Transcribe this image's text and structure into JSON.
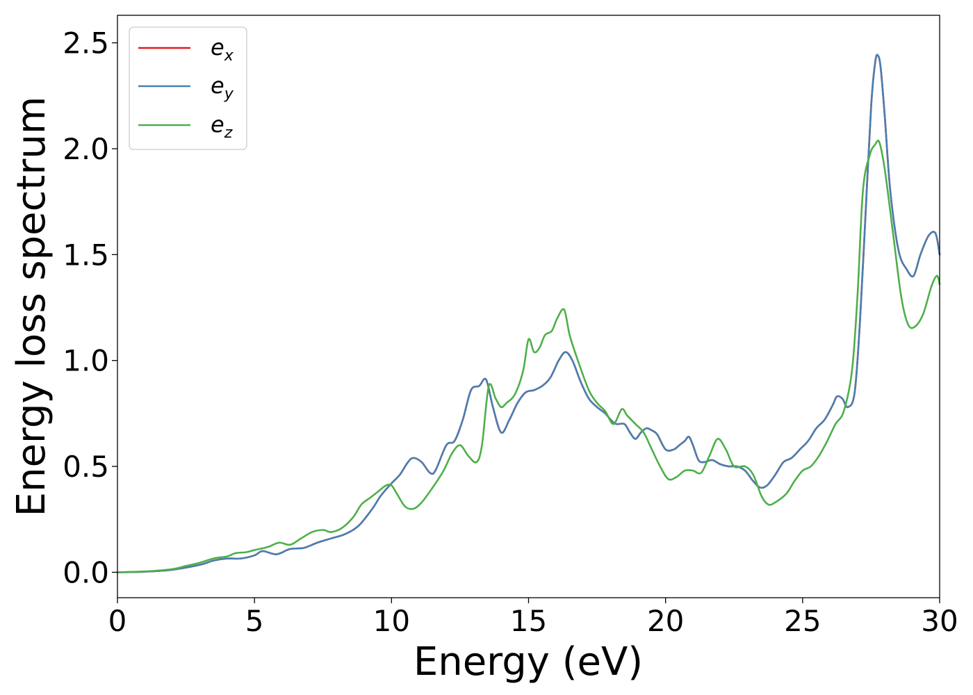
{
  "chart_data": {
    "type": "line",
    "xlabel": "Energy (eV)",
    "ylabel": "Energy loss spectrum",
    "xlim": [
      0,
      30
    ],
    "ylim": [
      -0.12,
      2.63
    ],
    "xticks": [
      0,
      5,
      10,
      15,
      20,
      25,
      30
    ],
    "xtick_labels": [
      "0",
      "5",
      "10",
      "15",
      "20",
      "25",
      "30"
    ],
    "yticks": [
      0.0,
      0.5,
      1.0,
      1.5,
      2.0,
      2.5
    ],
    "ytick_labels": [
      "0.0",
      "0.5",
      "1.0",
      "1.5",
      "2.0",
      "2.5"
    ],
    "grid": false,
    "legend_position": "top-left",
    "series": [
      {
        "name": "e_x",
        "legend_base": "e",
        "legend_sub": "x",
        "color": "#e41a1c",
        "x": [
          0,
          1,
          2,
          3,
          3.5,
          4,
          4.5,
          5,
          5.3,
          5.8,
          6.3,
          6.8,
          7.3,
          7.8,
          8.3,
          8.8,
          9.3,
          9.6,
          10,
          10.3,
          10.6,
          10.8,
          11.1,
          11.4,
          11.6,
          12,
          12.3,
          12.6,
          12.9,
          13.2,
          13.45,
          13.7,
          14,
          14.3,
          14.6,
          14.9,
          15.2,
          15.5,
          15.8,
          16.1,
          16.35,
          16.6,
          16.9,
          17.2,
          17.5,
          17.8,
          18,
          18.2,
          18.5,
          18.7,
          18.9,
          19.1,
          19.3,
          19.5,
          19.7,
          20,
          20.3,
          20.5,
          20.7,
          20.85,
          21,
          21.2,
          21.4,
          21.7,
          22,
          22.3,
          22.6,
          22.9,
          23.2,
          23.45,
          23.7,
          24,
          24.3,
          24.6,
          24.9,
          25.2,
          25.5,
          25.8,
          26.1,
          26.25,
          26.45,
          26.65,
          26.9,
          27.1,
          27.3,
          27.5,
          27.65,
          27.75,
          27.85,
          28,
          28.2,
          28.5,
          28.8,
          29.05,
          29.3,
          29.6,
          29.85,
          30
        ],
        "y": [
          0,
          0.003,
          0.012,
          0.035,
          0.055,
          0.065,
          0.065,
          0.08,
          0.1,
          0.085,
          0.11,
          0.115,
          0.14,
          0.16,
          0.18,
          0.22,
          0.3,
          0.36,
          0.42,
          0.46,
          0.52,
          0.54,
          0.52,
          0.47,
          0.48,
          0.6,
          0.62,
          0.72,
          0.86,
          0.88,
          0.91,
          0.78,
          0.66,
          0.72,
          0.8,
          0.85,
          0.86,
          0.88,
          0.92,
          1.0,
          1.04,
          1.0,
          0.9,
          0.82,
          0.78,
          0.75,
          0.72,
          0.7,
          0.7,
          0.66,
          0.63,
          0.66,
          0.68,
          0.67,
          0.65,
          0.58,
          0.58,
          0.6,
          0.62,
          0.64,
          0.6,
          0.53,
          0.52,
          0.53,
          0.51,
          0.5,
          0.5,
          0.48,
          0.43,
          0.4,
          0.41,
          0.46,
          0.52,
          0.54,
          0.58,
          0.62,
          0.68,
          0.72,
          0.79,
          0.83,
          0.82,
          0.78,
          0.85,
          1.2,
          1.7,
          2.2,
          2.41,
          2.44,
          2.38,
          2.15,
          1.8,
          1.52,
          1.43,
          1.4,
          1.5,
          1.59,
          1.6,
          1.5
        ]
      },
      {
        "name": "e_y",
        "legend_base": "e",
        "legend_sub": "y",
        "color": "#4a7fb0",
        "x": [
          0,
          1,
          2,
          3,
          3.5,
          4,
          4.5,
          5,
          5.3,
          5.8,
          6.3,
          6.8,
          7.3,
          7.8,
          8.3,
          8.8,
          9.3,
          9.6,
          10,
          10.3,
          10.6,
          10.8,
          11.1,
          11.4,
          11.6,
          12,
          12.3,
          12.6,
          12.9,
          13.2,
          13.45,
          13.7,
          14,
          14.3,
          14.6,
          14.9,
          15.2,
          15.5,
          15.8,
          16.1,
          16.35,
          16.6,
          16.9,
          17.2,
          17.5,
          17.8,
          18,
          18.2,
          18.5,
          18.7,
          18.9,
          19.1,
          19.3,
          19.5,
          19.7,
          20,
          20.3,
          20.5,
          20.7,
          20.85,
          21,
          21.2,
          21.4,
          21.7,
          22,
          22.3,
          22.6,
          22.9,
          23.2,
          23.45,
          23.7,
          24,
          24.3,
          24.6,
          24.9,
          25.2,
          25.5,
          25.8,
          26.1,
          26.25,
          26.45,
          26.65,
          26.9,
          27.1,
          27.3,
          27.5,
          27.65,
          27.75,
          27.85,
          28,
          28.2,
          28.5,
          28.8,
          29.05,
          29.3,
          29.6,
          29.85,
          30
        ],
        "y": [
          0,
          0.003,
          0.012,
          0.035,
          0.055,
          0.065,
          0.065,
          0.08,
          0.1,
          0.085,
          0.11,
          0.115,
          0.14,
          0.16,
          0.18,
          0.22,
          0.3,
          0.36,
          0.42,
          0.46,
          0.52,
          0.54,
          0.52,
          0.47,
          0.48,
          0.6,
          0.62,
          0.72,
          0.86,
          0.88,
          0.91,
          0.78,
          0.66,
          0.72,
          0.8,
          0.85,
          0.86,
          0.88,
          0.92,
          1.0,
          1.04,
          1.0,
          0.9,
          0.82,
          0.78,
          0.75,
          0.72,
          0.7,
          0.7,
          0.66,
          0.63,
          0.66,
          0.68,
          0.67,
          0.65,
          0.58,
          0.58,
          0.6,
          0.62,
          0.64,
          0.6,
          0.53,
          0.52,
          0.53,
          0.51,
          0.5,
          0.5,
          0.48,
          0.43,
          0.4,
          0.41,
          0.46,
          0.52,
          0.54,
          0.58,
          0.62,
          0.68,
          0.72,
          0.79,
          0.83,
          0.82,
          0.78,
          0.85,
          1.2,
          1.7,
          2.2,
          2.41,
          2.44,
          2.38,
          2.15,
          1.8,
          1.52,
          1.43,
          1.4,
          1.5,
          1.59,
          1.6,
          1.5
        ]
      },
      {
        "name": "e_z",
        "legend_base": "e",
        "legend_sub": "z",
        "color": "#4daf4a",
        "x": [
          0,
          1,
          2,
          2.5,
          3,
          3.5,
          4,
          4.3,
          4.7,
          5,
          5.5,
          5.9,
          6.3,
          6.7,
          7.1,
          7.5,
          7.8,
          8.2,
          8.6,
          8.9,
          9.2,
          9.5,
          9.8,
          10,
          10.2,
          10.5,
          10.8,
          11.1,
          11.5,
          11.9,
          12.2,
          12.5,
          12.8,
          13.1,
          13.3,
          13.55,
          13.8,
          14,
          14.2,
          14.5,
          14.8,
          15,
          15.2,
          15.4,
          15.6,
          15.85,
          16.05,
          16.3,
          16.5,
          16.8,
          17.2,
          17.5,
          17.8,
          18.1,
          18.4,
          18.6,
          18.9,
          19.2,
          19.5,
          19.8,
          20.1,
          20.4,
          20.7,
          21,
          21.3,
          21.6,
          21.9,
          22.2,
          22.5,
          22.9,
          23.2,
          23.5,
          23.75,
          24,
          24.4,
          24.7,
          25,
          25.3,
          25.6,
          25.9,
          26.2,
          26.5,
          26.8,
          27,
          27.2,
          27.45,
          27.65,
          27.8,
          28,
          28.3,
          28.6,
          28.85,
          29.1,
          29.4,
          29.7,
          29.9,
          30
        ],
        "y": [
          0,
          0.004,
          0.015,
          0.03,
          0.045,
          0.065,
          0.075,
          0.09,
          0.095,
          0.105,
          0.12,
          0.14,
          0.13,
          0.16,
          0.19,
          0.2,
          0.19,
          0.21,
          0.26,
          0.32,
          0.35,
          0.38,
          0.41,
          0.41,
          0.37,
          0.31,
          0.3,
          0.33,
          0.4,
          0.48,
          0.56,
          0.6,
          0.55,
          0.52,
          0.6,
          0.88,
          0.82,
          0.78,
          0.8,
          0.84,
          0.95,
          1.1,
          1.04,
          1.06,
          1.12,
          1.14,
          1.2,
          1.24,
          1.12,
          1.0,
          0.86,
          0.8,
          0.76,
          0.7,
          0.77,
          0.74,
          0.7,
          0.66,
          0.58,
          0.5,
          0.44,
          0.45,
          0.48,
          0.48,
          0.47,
          0.55,
          0.63,
          0.58,
          0.5,
          0.5,
          0.46,
          0.36,
          0.32,
          0.33,
          0.37,
          0.43,
          0.48,
          0.5,
          0.55,
          0.62,
          0.7,
          0.76,
          0.95,
          1.3,
          1.8,
          1.97,
          2.02,
          2.03,
          1.9,
          1.6,
          1.3,
          1.17,
          1.16,
          1.22,
          1.35,
          1.4,
          1.36
        ]
      }
    ]
  }
}
